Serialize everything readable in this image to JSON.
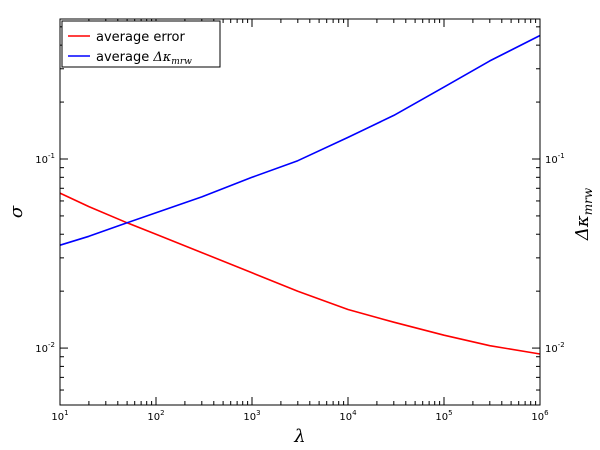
{
  "chart_data": {
    "type": "line",
    "x_scale": "log",
    "y_scale": "log",
    "xlim": [
      10,
      1000000
    ],
    "ylim": [
      0.005,
      0.55
    ],
    "xlabel": "λ",
    "ylabel_left": "σ",
    "ylabel_right": "Δκ_mrw",
    "x_ticks": [
      {
        "base": "10",
        "exp": "1",
        "value": 10
      },
      {
        "base": "10",
        "exp": "2",
        "value": 100
      },
      {
        "base": "10",
        "exp": "3",
        "value": 1000
      },
      {
        "base": "10",
        "exp": "4",
        "value": 10000
      },
      {
        "base": "10",
        "exp": "5",
        "value": 100000
      },
      {
        "base": "10",
        "exp": "6",
        "value": 1000000
      }
    ],
    "y_ticks": [
      {
        "base": "10",
        "exp": "-1",
        "value": 0.1
      },
      {
        "base": "10",
        "exp": "-2",
        "value": 0.01
      }
    ],
    "legend": {
      "placement": "top-left",
      "entries": [
        {
          "label": "average error",
          "color": "#ff0000"
        },
        {
          "label_prefix": "average ",
          "label_math": "Δκ",
          "label_sub": "mrw",
          "color": "#0000ff"
        }
      ]
    },
    "series": [
      {
        "name": "average error",
        "color": "#ff0000",
        "x": [
          10,
          20,
          50,
          100,
          300,
          1000,
          3000,
          10000,
          30000,
          100000,
          300000,
          1000000
        ],
        "y": [
          0.066,
          0.056,
          0.046,
          0.04,
          0.032,
          0.025,
          0.02,
          0.016,
          0.0137,
          0.0117,
          0.0103,
          0.0093
        ]
      },
      {
        "name": "average Δκ_mrw",
        "color": "#0000ff",
        "x": [
          10,
          20,
          50,
          100,
          300,
          1000,
          3000,
          10000,
          30000,
          100000,
          300000,
          1000000
        ],
        "y": [
          0.035,
          0.039,
          0.046,
          0.052,
          0.063,
          0.08,
          0.098,
          0.13,
          0.17,
          0.24,
          0.33,
          0.45
        ]
      }
    ]
  }
}
